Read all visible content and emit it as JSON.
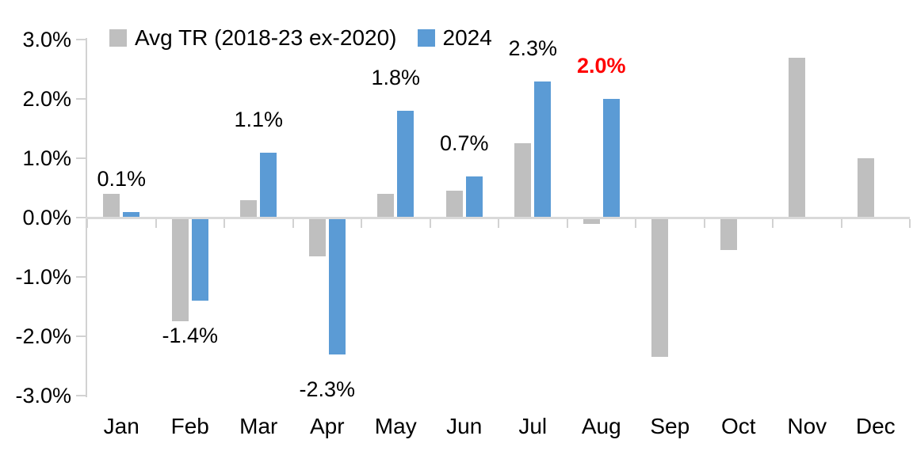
{
  "chart_data": {
    "type": "bar",
    "title": "",
    "xlabel": "",
    "ylabel": "",
    "categories": [
      "Jan",
      "Feb",
      "Mar",
      "Apr",
      "May",
      "Jun",
      "Jul",
      "Aug",
      "Sep",
      "Oct",
      "Nov",
      "Dec"
    ],
    "series": [
      {
        "name": "Avg TR (2018-23 ex-2020)",
        "color": "#BFBFBF",
        "values": [
          0.4,
          -1.75,
          0.3,
          -0.65,
          0.4,
          0.45,
          1.25,
          -0.1,
          -2.35,
          -0.55,
          2.7,
          1.0
        ]
      },
      {
        "name": "2024",
        "color": "#5B9BD5",
        "values": [
          0.1,
          -1.4,
          1.1,
          -2.3,
          1.8,
          0.7,
          2.3,
          2.0,
          null,
          null,
          null,
          null
        ]
      }
    ],
    "data_labels": [
      {
        "text": "0.1%",
        "color": "#000000",
        "bold": false
      },
      {
        "text": "-1.4%",
        "color": "#000000",
        "bold": false
      },
      {
        "text": "1.1%",
        "color": "#000000",
        "bold": false
      },
      {
        "text": "-2.3%",
        "color": "#000000",
        "bold": false
      },
      {
        "text": "1.8%",
        "color": "#000000",
        "bold": false
      },
      {
        "text": "0.7%",
        "color": "#000000",
        "bold": false
      },
      {
        "text": "2.3%",
        "color": "#000000",
        "bold": false
      },
      {
        "text": "2.0%",
        "color": "#FF0000",
        "bold": true
      },
      null,
      null,
      null,
      null
    ],
    "y_axis": {
      "ticks": [
        "3.0%",
        "2.0%",
        "1.0%",
        "0.0%",
        "-1.0%",
        "-2.0%",
        "-3.0%"
      ],
      "values": [
        3,
        2,
        1,
        0,
        -1,
        -2,
        -3
      ],
      "min": -3,
      "max": 3
    },
    "grid": false,
    "legend_position": "top",
    "axis_color": "#D9D9D9",
    "label_color": "#000000",
    "highlight_color": "#FF0000"
  }
}
